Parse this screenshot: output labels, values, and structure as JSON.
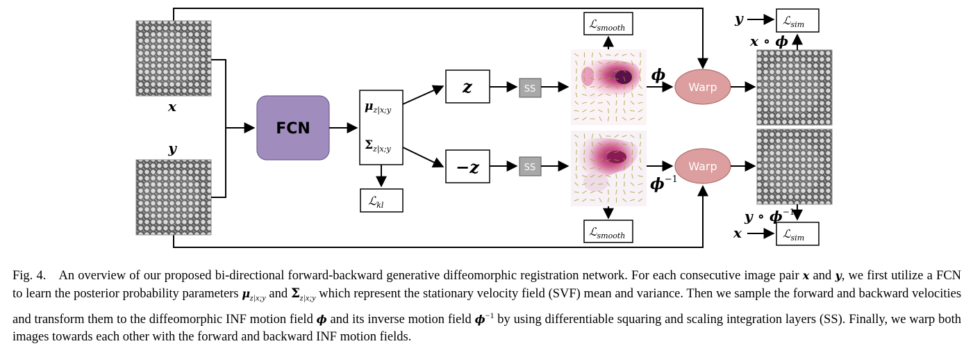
{
  "inputs": {
    "x_label": "x",
    "y_label": "y"
  },
  "network": {
    "fcn_label": "FCN"
  },
  "params": {
    "mu_label": "μ",
    "mu_sub": "z|x;y",
    "sigma_label": "Σ",
    "sigma_sub": "z|x;y"
  },
  "latent": {
    "z_label": "z",
    "neg_z_label": "−z"
  },
  "integration": {
    "ss_top": "SS",
    "ss_bottom": "SS"
  },
  "fields": {
    "phi_label": "ϕ",
    "phi_inv_label": "ϕ",
    "phi_inv_sup": "−1"
  },
  "warp": {
    "top_label": "Warp",
    "bottom_label": "Warp"
  },
  "losses": {
    "L_symbol": "ℒ",
    "smooth_sub": "smooth",
    "kl_sub": "kl",
    "sim_sub": "sim"
  },
  "outputs": {
    "top_result": "x ∘ ϕ",
    "bottom_result_base": "y ∘ ϕ",
    "bottom_result_sup": "−1",
    "sim_top_input": "y",
    "sim_bottom_input": "x"
  },
  "colors": {
    "fcn_fill": "#a08dbd",
    "warp_fill": "#dc9e9e",
    "ss_fill": "#a8a8a8",
    "heat_dark": "#7a1f5c",
    "heat_light": "#f2c2d6",
    "vector_color": "#9aa23a"
  },
  "caption": {
    "fig_label": "Fig. 4.",
    "line1": "An overview of our proposed bi-directional forward-backward generative diffeomorphic registration network. For each consecutive image pair",
    "x": "x",
    "and1": "and",
    "y": "y",
    "line2a": ", we first utilize a FCN to learn the posterior probability parameters",
    "mu": "μ",
    "mu_sub": "z|x;y",
    "and2": "and",
    "sigma": "Σ",
    "sigma_sub": "z|x;y",
    "line2b": "which represent the stationary velocity field (SVF) mean and variance. Then we sample the forward and backward velocities and transform them to the diffeomorphic INF motion field",
    "phi": "ϕ",
    "line3b": "and its inverse motion field",
    "phi_inv": "ϕ",
    "phi_inv_sup": "−1",
    "line3c": "by using differentiable squaring and scaling integration layers (SS). Finally, we warp both images towards each other with the forward and backward INF motion fields."
  }
}
